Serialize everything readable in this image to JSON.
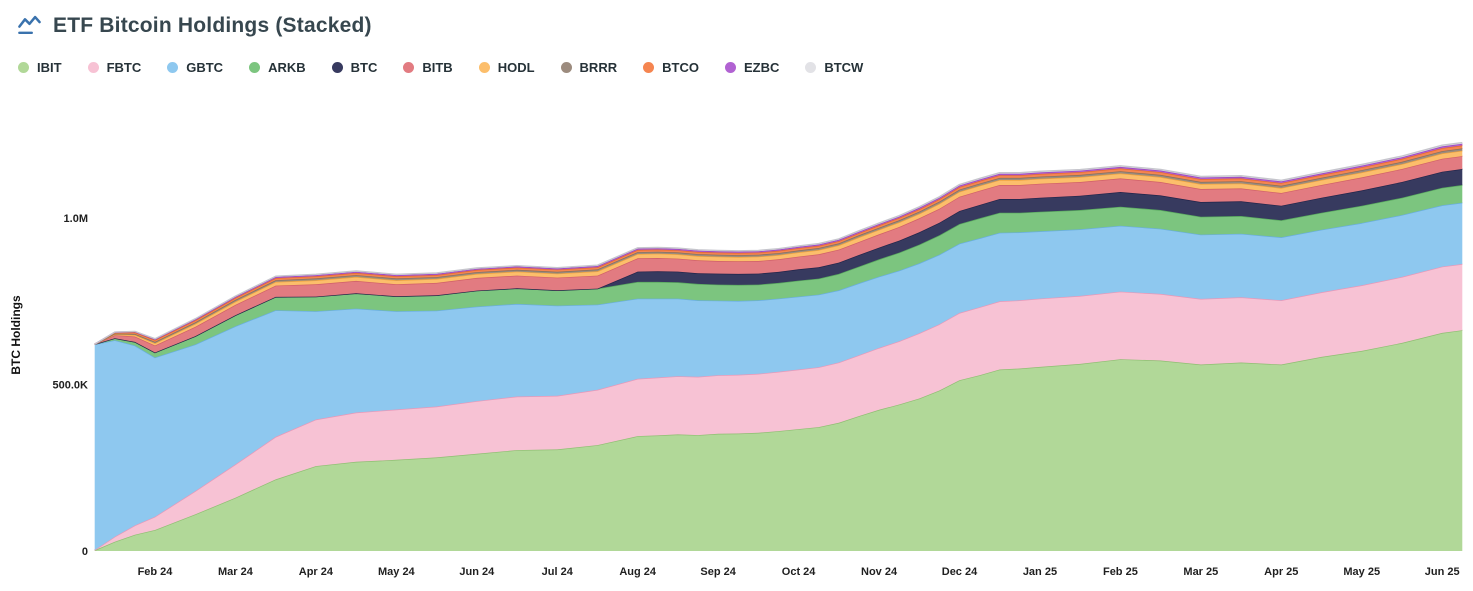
{
  "header": {
    "title": "ETF Bitcoin Holdings (Stacked)"
  },
  "icons": {
    "title_icon": "area-chart-icon",
    "title_icon_color": "#3a72ad"
  },
  "chart_data": {
    "type": "area",
    "stacked": true,
    "title": "ETF Bitcoin Holdings (Stacked)",
    "xlabel": "",
    "ylabel": "BTC Holdings",
    "grid": false,
    "legend_position": "top-left",
    "background": "#ffffff",
    "x_unit": "months since Feb 2024 tick",
    "value_unit_btc": 1000,
    "ylim_btc": [
      0,
      1400000
    ],
    "xtick_labels": [
      "Feb 24",
      "Mar 24",
      "Apr 24",
      "May 24",
      "Jun 24",
      "Jul 24",
      "Aug 24",
      "Sep 24",
      "Oct 24",
      "Nov 24",
      "Dec 24",
      "Jan 25",
      "Feb 25",
      "Mar 25",
      "Apr 25",
      "May 25",
      "Jun 25"
    ],
    "yticks": [
      {
        "value_k": 0,
        "label": "0"
      },
      {
        "value_k": 500,
        "label": "500.0K"
      },
      {
        "value_k": 1000,
        "label": "1.0M"
      }
    ],
    "x": [
      -0.75,
      -0.5,
      -0.25,
      0,
      0.5,
      1,
      1.5,
      2,
      2.5,
      3,
      3.5,
      4,
      4.5,
      5,
      5.5,
      6,
      6.25,
      6.5,
      6.75,
      7,
      7.25,
      7.5,
      7.75,
      8,
      8.25,
      8.5,
      8.75,
      9,
      9.25,
      9.5,
      9.75,
      10,
      10.25,
      10.5,
      10.75,
      11,
      11.5,
      12,
      12.5,
      13,
      13.5,
      14,
      14.5,
      15,
      15.5,
      16,
      16.25
    ],
    "series": [
      {
        "name": "IBIT",
        "fill": "#b1d898",
        "stroke": "#8fbe72",
        "values_k": [
          2,
          28,
          49,
          63,
          110,
          160,
          215,
          255,
          268,
          274,
          281,
          292,
          303,
          305,
          318,
          345,
          347,
          350,
          348,
          352,
          353,
          355,
          360,
          366,
          372,
          385,
          405,
          424,
          440,
          458,
          482,
          513,
          528,
          545,
          548,
          553,
          562,
          576,
          572,
          560,
          566,
          560,
          583,
          601,
          625,
          655,
          663
        ]
      },
      {
        "name": "FBTC",
        "fill": "#f7c2d4",
        "stroke": "#e898b8",
        "values_k": [
          1,
          15,
          28,
          40,
          70,
          100,
          128,
          140,
          148,
          151,
          153,
          158,
          161,
          161,
          166,
          172,
          174,
          175,
          175,
          176,
          176,
          177,
          178,
          179,
          180,
          181,
          183,
          186,
          190,
          196,
          199,
          202,
          204,
          205,
          205,
          205,
          204,
          203,
          200,
          197,
          196,
          193,
          194,
          197,
          198,
          199,
          199
        ]
      },
      {
        "name": "GBTC",
        "fill": "#8ec8ef",
        "stroke": "#69aede",
        "values_k": [
          617,
          590,
          540,
          478,
          440,
          415,
          380,
          325,
          312,
          295,
          288,
          284,
          278,
          271,
          256,
          241,
          237,
          233,
          230,
          224,
          222,
          221,
          220,
          219,
          218,
          217,
          216,
          214,
          212,
          210,
          209,
          208,
          207,
          206,
          204,
          202,
          200,
          198,
          196,
          193,
          191,
          189,
          188,
          187,
          186,
          184,
          184
        ]
      },
      {
        "name": "ARKB",
        "fill": "#7cc57f",
        "stroke": "#58a85e",
        "values_k": [
          1,
          6,
          11,
          15,
          25,
          33,
          40,
          44,
          46,
          45,
          46,
          48,
          47,
          46,
          48,
          50,
          50,
          49,
          49,
          48,
          48,
          47,
          47,
          48,
          48,
          49,
          50,
          52,
          54,
          56,
          58,
          59,
          60,
          60,
          59,
          59,
          58,
          57,
          56,
          54,
          53,
          51,
          51,
          52,
          52,
          53,
          53
        ]
      },
      {
        "name": "BTC",
        "fill": "#373a5f",
        "stroke": "#22244a",
        "values_k": [
          0,
          0,
          0,
          0,
          0,
          0,
          0,
          0,
          0,
          0,
          0,
          0,
          0,
          0,
          0,
          31,
          32,
          32,
          32,
          33,
          33,
          33,
          33,
          34,
          34,
          34,
          35,
          35,
          36,
          37,
          38,
          39,
          40,
          41,
          41,
          42,
          43,
          44,
          44,
          44,
          44,
          44,
          45,
          46,
          47,
          48,
          48
        ]
      },
      {
        "name": "BITB",
        "fill": "#e27b81",
        "stroke": "#d05f68",
        "values_k": [
          0,
          9,
          16,
          21,
          28,
          31,
          34,
          37,
          37,
          36,
          37,
          38,
          38,
          38,
          39,
          40,
          40,
          39,
          39,
          38,
          38,
          38,
          38,
          38,
          39,
          39,
          39,
          40,
          41,
          42,
          42,
          43,
          43,
          42,
          42,
          42,
          41,
          41,
          40,
          39,
          39,
          38,
          38,
          39,
          39,
          39,
          39
        ]
      },
      {
        "name": "HODL",
        "fill": "#fcbe6b",
        "stroke": "#f0a43e",
        "values_k": [
          0,
          3,
          5,
          7,
          9,
          10,
          11,
          12,
          12,
          12,
          12,
          12,
          12,
          12,
          13,
          13,
          13,
          13,
          13,
          13,
          13,
          13,
          13,
          13,
          13,
          13,
          14,
          14,
          14,
          14,
          15,
          15,
          15,
          15,
          15,
          15,
          15,
          15,
          15,
          15,
          15,
          15,
          15,
          15,
          15,
          16,
          16
        ]
      },
      {
        "name": "BRRR",
        "fill": "#9c8b7e",
        "stroke": "#82705f",
        "values_k": [
          0,
          2,
          3,
          4,
          4.5,
          5,
          5.2,
          5.5,
          5.5,
          5.5,
          5.5,
          5.5,
          5.5,
          5.5,
          5.6,
          5.7,
          5.7,
          5.7,
          5.7,
          5.7,
          5.7,
          5.7,
          5.7,
          5.8,
          5.8,
          5.8,
          5.9,
          6,
          6,
          6.1,
          6.2,
          6.3,
          6.3,
          6.3,
          6.3,
          6.3,
          6.4,
          6.5,
          6.5,
          6.5,
          6.5,
          6.6,
          6.7,
          6.8,
          6.9,
          7,
          7
        ]
      },
      {
        "name": "BTCO",
        "fill": "#f58550",
        "stroke": "#e3682c",
        "values_k": [
          0,
          3,
          4.5,
          5.5,
          6,
          6.2,
          6.4,
          6.5,
          6.5,
          6.4,
          6.4,
          6.5,
          6.5,
          6.4,
          6.5,
          6.6,
          6.6,
          6.6,
          6.6,
          6.6,
          6.6,
          6.6,
          6.7,
          6.7,
          6.7,
          6.8,
          6.9,
          7,
          7.2,
          7.4,
          7.6,
          7.9,
          8,
          8.1,
          8.1,
          8.2,
          8.3,
          8.4,
          8.4,
          8.4,
          8.5,
          8.5,
          8.6,
          8.7,
          8.8,
          9,
          9
        ]
      },
      {
        "name": "EZBC",
        "fill": "#b162d2",
        "stroke": "#9a46bd",
        "values_k": [
          0,
          1,
          2,
          2.5,
          3,
          3.3,
          3.5,
          3.6,
          3.6,
          3.6,
          3.6,
          3.6,
          3.6,
          3.6,
          3.7,
          3.8,
          3.8,
          3.8,
          3.8,
          3.8,
          3.8,
          3.8,
          3.9,
          3.9,
          3.9,
          4,
          4,
          4.1,
          4.1,
          4.2,
          4.3,
          4.4,
          4.4,
          4.4,
          4.4,
          4.5,
          4.5,
          4.6,
          4.6,
          4.6,
          4.6,
          4.7,
          4.7,
          4.8,
          4.9,
          5,
          5
        ]
      },
      {
        "name": "BTCW",
        "fill": "#e2e2e6",
        "stroke": "#c6c6cd",
        "values_k": [
          0,
          0.5,
          1,
          1.5,
          1.8,
          2,
          2.2,
          2.3,
          2.3,
          2.3,
          2.3,
          2.3,
          2.3,
          2.3,
          2.4,
          2.5,
          2.5,
          2.5,
          2.5,
          2.5,
          2.5,
          2.5,
          2.6,
          2.6,
          2.6,
          2.7,
          2.7,
          2.8,
          2.8,
          2.9,
          3,
          3.1,
          3.1,
          3.1,
          3.1,
          3.2,
          3.2,
          3.3,
          3.3,
          3.3,
          3.3,
          3.4,
          3.4,
          3.5,
          3.5,
          3.5,
          3.5
        ]
      }
    ]
  }
}
